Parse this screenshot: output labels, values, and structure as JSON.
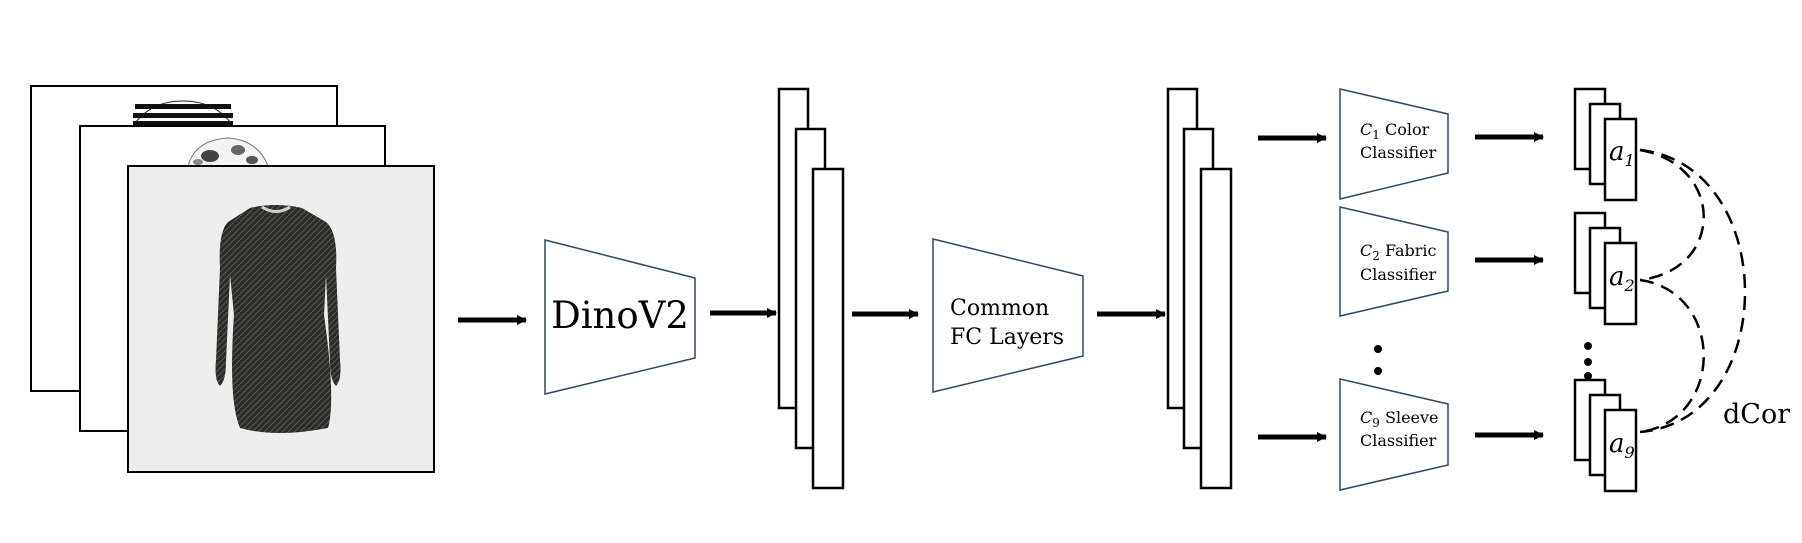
{
  "backbone": {
    "label": "DinoV2"
  },
  "common": {
    "line1": "Common",
    "line2": "FC Layers"
  },
  "classifiers": [
    {
      "symbol": "C",
      "sub": "1",
      "name": "Color",
      "line2": "Classifier"
    },
    {
      "symbol": "C",
      "sub": "2",
      "name": "Fabric",
      "line2": "Classifier"
    },
    {
      "symbol": "C",
      "sub": "9",
      "name": "Sleeve",
      "line2": "Classifier"
    }
  ],
  "outputs": [
    {
      "symbol": "a",
      "sub": "1"
    },
    {
      "symbol": "a",
      "sub": "2"
    },
    {
      "symbol": "a",
      "sub": "9"
    }
  ],
  "loss": {
    "label": "dCor"
  },
  "colors": {
    "stroke": "#000000",
    "trapezoid_stroke": "#2f4a66",
    "photo_bg": "#ededed",
    "dress": "#2b2b28"
  }
}
